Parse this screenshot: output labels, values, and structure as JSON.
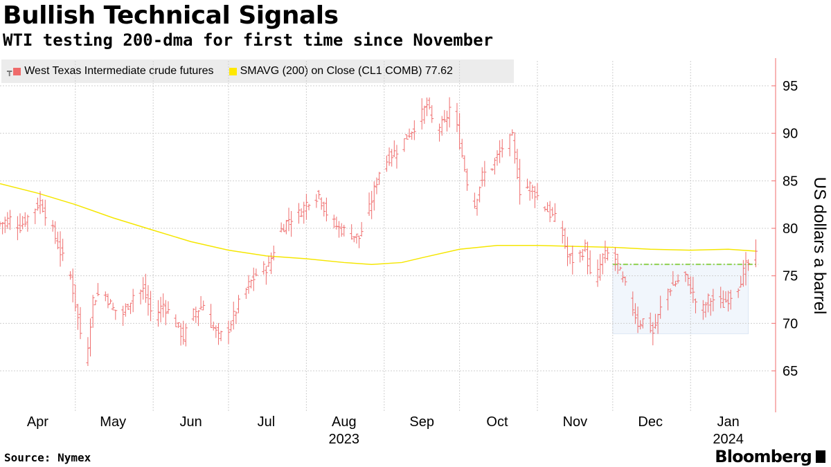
{
  "title": "Bullish Technical Signals",
  "subtitle": "WTI testing 200-dma for first time since November",
  "legend": {
    "series1": "West Texas Intermediate crude futures",
    "series2": "SMAVG (200)  on Close (CL1 COMB) 77.62"
  },
  "source": "Source: Nymex",
  "logo": "Bloomberg",
  "colors": {
    "bars": "#ef6b6b",
    "sma": "#f5e600",
    "band_fill": "#f1f6fc",
    "band_stroke": "#dce7f3",
    "resistance": "#8fd14f",
    "grid": "#cfcfcf",
    "right_axis": "#ef6b6b"
  },
  "chart_data": {
    "type": "ohlc",
    "title": "Bullish Technical Signals",
    "subtitle": "WTI testing 200-dma for first time since November",
    "ylabel": "US dollars a barrel",
    "ylim": [
      61,
      98
    ],
    "yticks": [
      65,
      70,
      75,
      80,
      85,
      90,
      95
    ],
    "xlim": [
      0,
      305
    ],
    "months": [
      {
        "label": "Apr",
        "day": 15
      },
      {
        "label": "May",
        "day": 45
      },
      {
        "label": "Jun",
        "day": 76
      },
      {
        "label": "Jul",
        "day": 106
      },
      {
        "label": "Aug",
        "day": 137
      },
      {
        "label": "Sep",
        "day": 168
      },
      {
        "label": "Oct",
        "day": 198
      },
      {
        "label": "Nov",
        "day": 229
      },
      {
        "label": "Dec",
        "day": 259
      },
      {
        "label": "Jan",
        "day": 290
      }
    ],
    "month_boundaries": [
      0,
      30,
      61,
      91,
      122,
      153,
      183,
      214,
      244,
      275,
      305
    ],
    "years": [
      {
        "label": "2023",
        "day": 137
      },
      {
        "label": "2024",
        "day": 290
      }
    ],
    "price_path": [
      [
        0,
        80.5
      ],
      [
        4,
        81.0
      ],
      [
        8,
        80.2
      ],
      [
        12,
        81.5
      ],
      [
        16,
        82.8
      ],
      [
        20,
        80.5
      ],
      [
        24,
        77.5
      ],
      [
        28,
        75.0
      ],
      [
        32,
        69.0
      ],
      [
        34,
        65.5
      ],
      [
        37,
        72.5
      ],
      [
        41,
        73.5
      ],
      [
        45,
        71.5
      ],
      [
        49,
        71.0
      ],
      [
        53,
        73.0
      ],
      [
        57,
        73.5
      ],
      [
        61,
        70.5
      ],
      [
        65,
        72.0
      ],
      [
        69,
        70.5
      ],
      [
        73,
        68.5
      ],
      [
        77,
        71.0
      ],
      [
        81,
        72.0
      ],
      [
        84,
        70.0
      ],
      [
        87,
        68.5
      ],
      [
        91,
        69.5
      ],
      [
        95,
        72.0
      ],
      [
        99,
        74.0
      ],
      [
        103,
        75.5
      ],
      [
        107,
        76.0
      ],
      [
        111,
        79.5
      ],
      [
        115,
        81.0
      ],
      [
        119,
        81.5
      ],
      [
        123,
        83.0
      ],
      [
        127,
        83.5
      ],
      [
        131,
        81.0
      ],
      [
        135,
        80.0
      ],
      [
        139,
        79.5
      ],
      [
        143,
        79.0
      ],
      [
        147,
        82.0
      ],
      [
        151,
        86.0
      ],
      [
        155,
        87.5
      ],
      [
        159,
        88.5
      ],
      [
        163,
        90.0
      ],
      [
        167,
        91.5
      ],
      [
        170,
        93.0
      ],
      [
        173,
        90.5
      ],
      [
        177,
        91.0
      ],
      [
        180,
        93.5
      ],
      [
        183,
        89.0
      ],
      [
        186,
        85.0
      ],
      [
        189,
        82.5
      ],
      [
        192,
        85.5
      ],
      [
        196,
        86.5
      ],
      [
        200,
        88.5
      ],
      [
        204,
        89.5
      ],
      [
        207,
        84.0
      ],
      [
        211,
        84.5
      ],
      [
        215,
        83.0
      ],
      [
        219,
        81.5
      ],
      [
        223,
        80.5
      ],
      [
        226,
        77.0
      ],
      [
        229,
        76.5
      ],
      [
        233,
        78.0
      ],
      [
        236,
        73.5
      ],
      [
        240,
        77.0
      ],
      [
        244,
        77.5
      ],
      [
        248,
        74.5
      ],
      [
        251,
        72.5
      ],
      [
        254,
        70.0
      ],
      [
        257,
        70.5
      ],
      [
        260,
        69.0
      ],
      [
        263,
        71.5
      ],
      [
        266,
        73.5
      ],
      [
        270,
        74.5
      ],
      [
        273,
        75.0
      ],
      [
        276,
        73.0
      ],
      [
        279,
        71.0
      ],
      [
        282,
        72.5
      ],
      [
        285,
        72.5
      ],
      [
        288,
        72.0
      ],
      [
        291,
        73.0
      ],
      [
        294,
        74.0
      ],
      [
        297,
        76.0
      ],
      [
        299,
        76.5
      ],
      [
        301,
        77.0
      ]
    ],
    "sma_path": [
      [
        0,
        84.7
      ],
      [
        15,
        83.7
      ],
      [
        30,
        82.5
      ],
      [
        45,
        81.1
      ],
      [
        61,
        79.8
      ],
      [
        76,
        78.6
      ],
      [
        91,
        77.7
      ],
      [
        106,
        77.1
      ],
      [
        122,
        76.8
      ],
      [
        137,
        76.4
      ],
      [
        148,
        76.2
      ],
      [
        160,
        76.4
      ],
      [
        168,
        76.9
      ],
      [
        183,
        77.8
      ],
      [
        198,
        78.2
      ],
      [
        214,
        78.2
      ],
      [
        229,
        78.1
      ],
      [
        244,
        78.0
      ],
      [
        259,
        77.8
      ],
      [
        275,
        77.7
      ],
      [
        290,
        77.8
      ],
      [
        301,
        77.6
      ]
    ],
    "consolidation_range": {
      "x0": 244,
      "x1": 298,
      "low": 68.9,
      "high": 76.2
    },
    "resistance_level": {
      "value": 76.2,
      "x0": 244,
      "x1": 302
    },
    "sma_last": 77.62
  }
}
